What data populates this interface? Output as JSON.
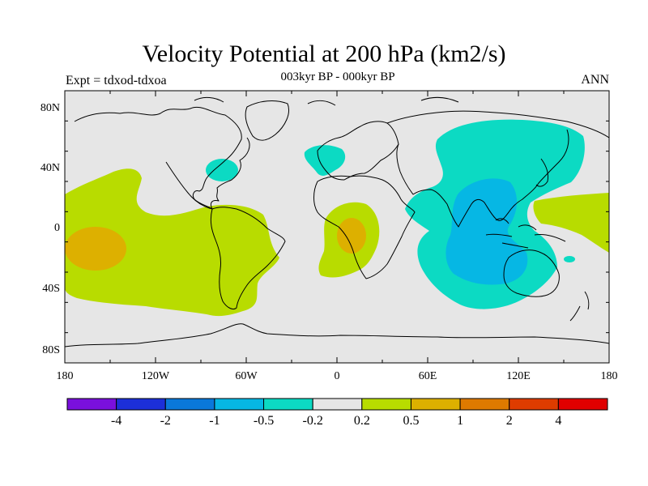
{
  "plot": {
    "title": "Velocity Potential at 200 hPa (km2/s)",
    "subtitle": "003kyr BP - 000kyr BP",
    "left_label": "Expt = tdxod-tdxoa",
    "right_label": "ANN"
  },
  "axes": {
    "lat_ticks": [
      "80N",
      "40N",
      "0",
      "40S",
      "80S"
    ],
    "lon_ticks": [
      "180",
      "120W",
      "60W",
      "0",
      "60E",
      "120E",
      "180"
    ]
  },
  "colorbar": {
    "colors": [
      "#7a10dd",
      "#1c2fd8",
      "#0a78da",
      "#06b7e4",
      "#0cdac3",
      "#e6e6e6",
      "#b8dc00",
      "#ddb000",
      "#de7a00",
      "#de3c00",
      "#e00000"
    ],
    "labels": [
      "-4",
      "-2",
      "-1",
      "-0.5",
      "-0.2",
      "0.2",
      "0.5",
      "1",
      "2",
      "4"
    ]
  },
  "map": {
    "background_color": "#e6e6e6",
    "coastline_color": "#000000"
  }
}
